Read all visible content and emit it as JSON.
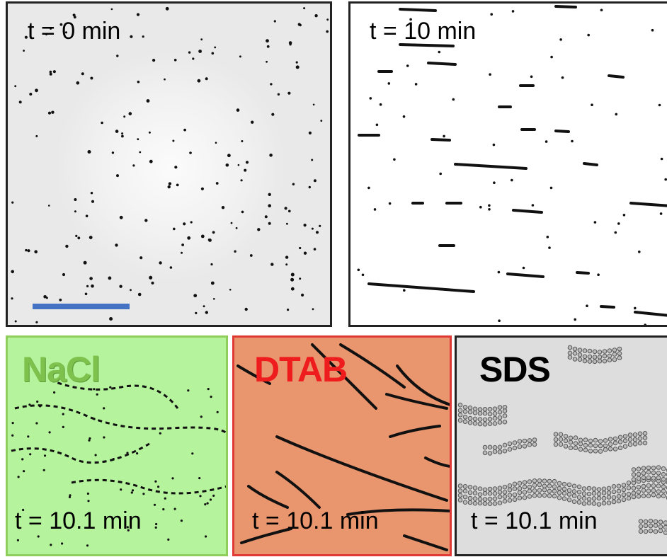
{
  "panels": {
    "t0": {
      "time_label": "t = 0 min"
    },
    "t10": {
      "time_label": "t = 10 min"
    },
    "nacl": {
      "title": "NaCl",
      "time_label": "t = 10.1 min"
    },
    "dtab": {
      "title": "DTAB",
      "time_label": "t = 10.1 min"
    },
    "sds": {
      "title": "SDS",
      "time_label": "t = 10.1 min"
    }
  },
  "colors": {
    "nacl_text": "#7fc14d",
    "nacl_border": "#8fce5b",
    "nacl_bg": "#b5f49c",
    "dtab_text": "#ee1c1c",
    "dtab_border": "#e13a36",
    "dtab_bg": "#e9956e",
    "sds_text": "#000000",
    "sds_bg": "#dddddd",
    "scale_bar": "#4672c4"
  }
}
